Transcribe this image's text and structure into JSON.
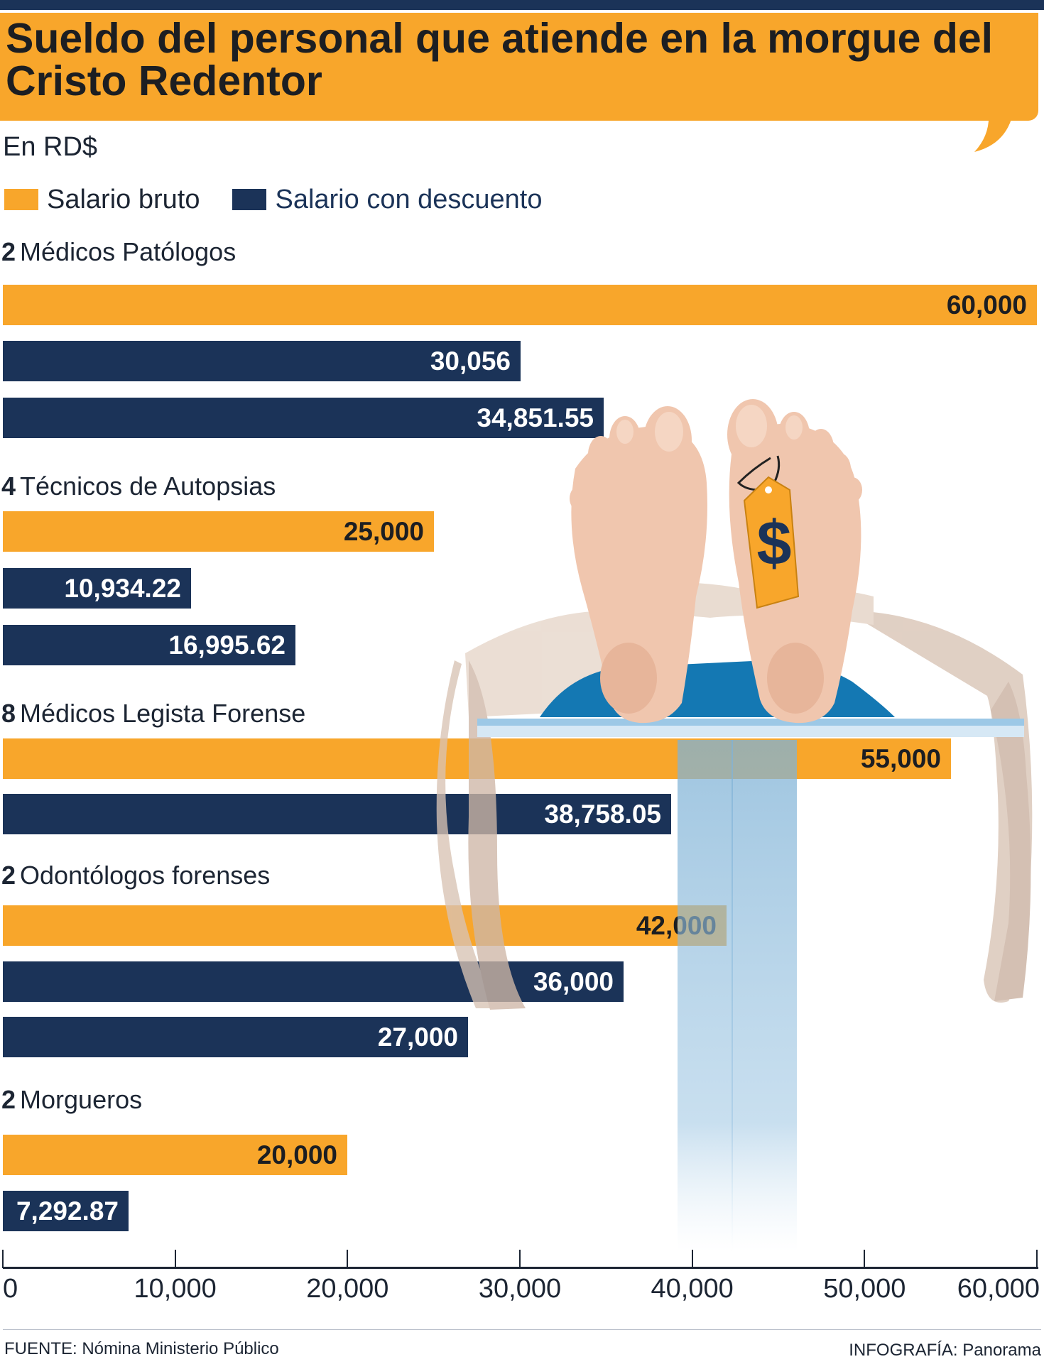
{
  "title": "Sueldo del personal que atiende en la morgue del Cristo Redentor",
  "subtitle": "En RD$",
  "legend": {
    "gross": "Salario bruto",
    "net": "Salario con descuento"
  },
  "colors": {
    "gross": "#f8a62b",
    "net": "#1b3358",
    "title_bg": "#f8a62b"
  },
  "source": "FUENTE: Nómina Ministerio Público",
  "credit": "INFOGRAFÍA: Panorama",
  "chart_data": {
    "type": "bar",
    "orientation": "horizontal",
    "xlim": [
      0,
      60000
    ],
    "ticks": [
      "0",
      "10,000",
      "20,000",
      "30,000",
      "40,000",
      "50,000",
      "60,000"
    ],
    "tick_values": [
      0,
      10000,
      20000,
      30000,
      40000,
      50000,
      60000
    ],
    "groups": [
      {
        "count": "2",
        "name": "Médicos Patólogos",
        "bars": [
          {
            "series": "gross",
            "value": 60000,
            "label": "60,000"
          },
          {
            "series": "net",
            "value": 30056,
            "label": "30,056"
          },
          {
            "series": "net",
            "value": 34851.55,
            "label": "34,851.55"
          }
        ]
      },
      {
        "count": "4",
        "name": "Técnicos de Autopsias",
        "bars": [
          {
            "series": "gross",
            "value": 25000,
            "label": "25,000"
          },
          {
            "series": "net",
            "value": 10934.22,
            "label": "10,934.22"
          },
          {
            "series": "net",
            "value": 16995.62,
            "label": "16,995.62"
          }
        ]
      },
      {
        "count": "8",
        "name": "Médicos Legista Forense",
        "bars": [
          {
            "series": "gross",
            "value": 55000,
            "label": "55,000"
          },
          {
            "series": "net",
            "value": 38758.05,
            "label": "38,758.05"
          }
        ]
      },
      {
        "count": "2",
        "name": "Odontólogos forenses",
        "bars": [
          {
            "series": "gross",
            "value": 42000,
            "label": "42,000"
          },
          {
            "series": "net",
            "value": 36000,
            "label": "36,000"
          },
          {
            "series": "net",
            "value": 27000,
            "label": "27,000"
          }
        ]
      },
      {
        "count": "2",
        "name": "Morgueros",
        "bars": [
          {
            "series": "gross",
            "value": 20000,
            "label": "20,000"
          },
          {
            "series": "net",
            "value": 7292.87,
            "label": "7,292.87"
          }
        ]
      }
    ]
  }
}
